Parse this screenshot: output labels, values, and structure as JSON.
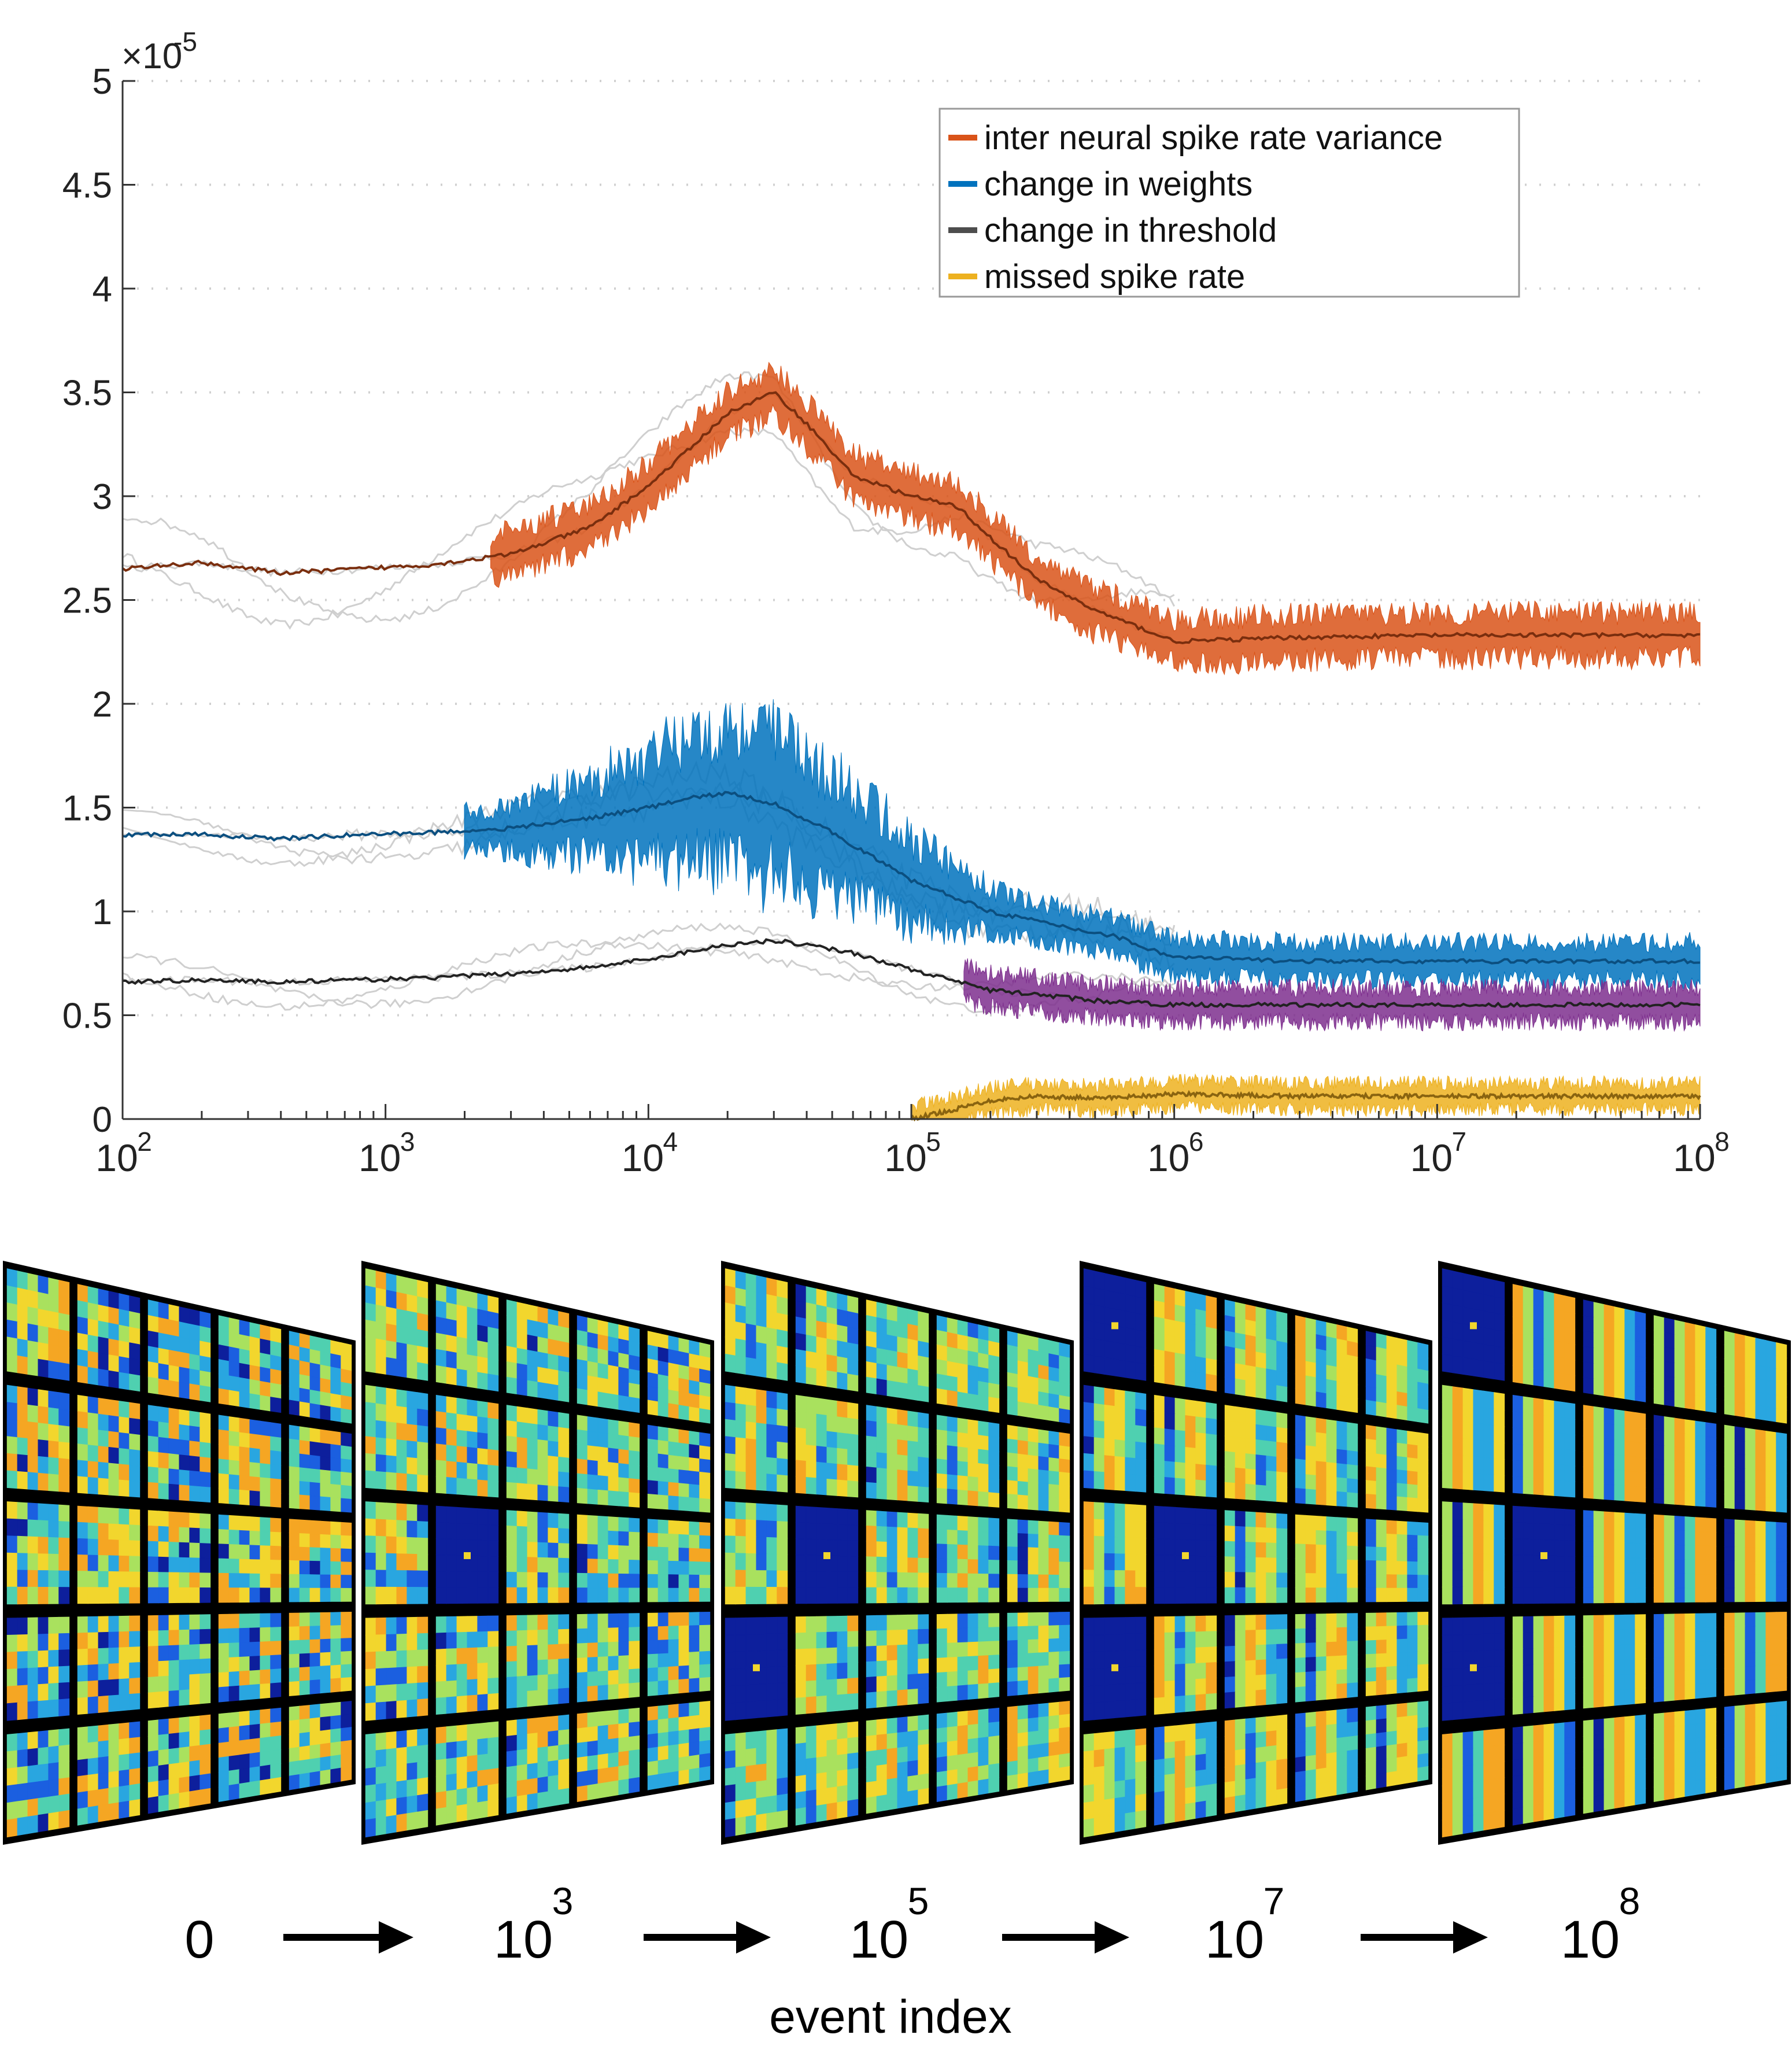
{
  "chart_data": {
    "type": "line",
    "scale_label_prefix": "×10",
    "scale_label_exponent": "-5",
    "x_scale": "log",
    "xlim": [
      100,
      100000000
    ],
    "ylim": [
      0,
      5
    ],
    "x_tick_labels": [
      {
        "base": "10",
        "exp": "2",
        "value": 100
      },
      {
        "base": "10",
        "exp": "3",
        "value": 1000
      },
      {
        "base": "10",
        "exp": "4",
        "value": 10000
      },
      {
        "base": "10",
        "exp": "5",
        "value": 100000
      },
      {
        "base": "10",
        "exp": "6",
        "value": 1000000
      },
      {
        "base": "10",
        "exp": "7",
        "value": 10000000
      },
      {
        "base": "10",
        "exp": "8",
        "value": 100000000
      }
    ],
    "y_tick_labels": [
      "0",
      "0.5",
      "1",
      "1.5",
      "2",
      "2.5",
      "3",
      "3.5",
      "4",
      "4.5",
      "5"
    ],
    "y_tick_values": [
      0,
      0.5,
      1,
      1.5,
      2,
      2.5,
      3,
      3.5,
      4,
      4.5,
      5
    ],
    "grid": "dotted horizontal",
    "legend_placement": "top-right",
    "series": [
      {
        "name": "inter neural spike rate variance",
        "color": "#d95319",
        "dark_color": "#7a2e0e",
        "x": [
          100,
          200,
          400,
          800,
          1500,
          3000,
          6000,
          10000,
          15000,
          20000,
          30000,
          40000,
          60000,
          100000,
          150000,
          200000,
          300000,
          500000,
          800000,
          1000000,
          3000000,
          10000000,
          30000000,
          100000000
        ],
        "y": [
          2.65,
          2.68,
          2.63,
          2.65,
          2.67,
          2.72,
          2.85,
          3.05,
          3.25,
          3.4,
          3.5,
          3.35,
          3.1,
          3.0,
          2.95,
          2.8,
          2.6,
          2.45,
          2.35,
          2.3,
          2.32,
          2.33,
          2.33,
          2.33
        ],
        "band_half_width": 0.12
      },
      {
        "name": "change in weights",
        "color": "#0072bd",
        "dark_color": "#0b4f80",
        "x": [
          100,
          200,
          400,
          800,
          1500,
          3000,
          6000,
          10000,
          15000,
          20000,
          30000,
          50000,
          100000,
          200000,
          400000,
          600000,
          800000,
          1000000,
          3000000,
          10000000,
          100000000
        ],
        "y": [
          1.37,
          1.37,
          1.35,
          1.37,
          1.38,
          1.4,
          1.45,
          1.5,
          1.55,
          1.57,
          1.52,
          1.38,
          1.15,
          1.0,
          0.92,
          0.88,
          0.82,
          0.78,
          0.76,
          0.76,
          0.76
        ],
        "band_half_width": 0.1
      },
      {
        "name": "change in threshold",
        "color": "#4d4d4d",
        "dark_color": "#222222",
        "x": [
          100,
          200,
          400,
          800,
          1500,
          3000,
          6000,
          10000,
          20000,
          30000,
          40000,
          60000,
          100000,
          150000,
          200000,
          300000,
          500000,
          1000000,
          3000000,
          10000000,
          100000000
        ],
        "y": [
          0.66,
          0.67,
          0.66,
          0.67,
          0.68,
          0.7,
          0.73,
          0.77,
          0.84,
          0.86,
          0.84,
          0.8,
          0.72,
          0.66,
          0.62,
          0.6,
          0.57,
          0.55,
          0.55,
          0.55,
          0.55
        ],
        "band_half_width": 0.09
      },
      {
        "name": "missed spike rate",
        "color": "#edb120",
        "dark_color": "#8a6410",
        "x": [
          100000,
          150000,
          200000,
          300000,
          500000,
          1000000,
          3000000,
          10000000,
          100000000
        ],
        "y": [
          0.0,
          0.05,
          0.09,
          0.11,
          0.1,
          0.12,
          0.11,
          0.11,
          0.11
        ],
        "band_half_width": 0.07
      }
    ]
  },
  "feature_maps": {
    "panel_count": 5,
    "grid_size": 5,
    "stage_labels": [
      {
        "base": "0",
        "exp": ""
      },
      {
        "base": "10",
        "exp": "3"
      },
      {
        "base": "10",
        "exp": "5"
      },
      {
        "base": "10",
        "exp": "7"
      },
      {
        "base": "10",
        "exp": "8"
      }
    ],
    "arrow_icon": "right-arrow-icon",
    "caption": "event index",
    "colormap": [
      "#0d1f9c",
      "#1b5fe0",
      "#29a6e0",
      "#4fd0b0",
      "#a9e15e",
      "#f2d62d",
      "#f5a623"
    ]
  },
  "colors": {
    "purple_band": "#7e2f8e",
    "ghost_lines": "#cfcfcf"
  }
}
